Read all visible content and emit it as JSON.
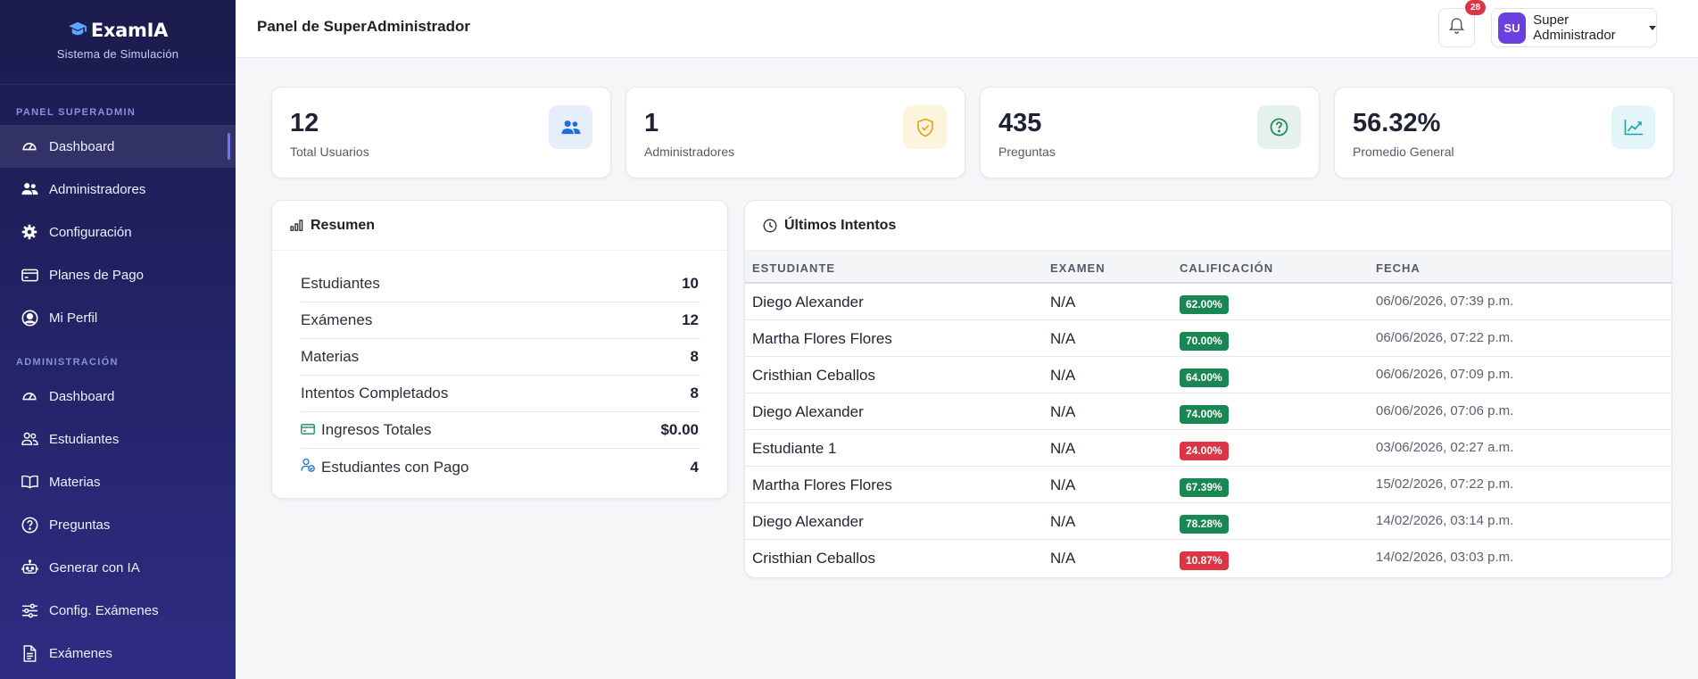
{
  "brand": {
    "name": "ExamIA",
    "subtitle": "Sistema de Simulación"
  },
  "sidebar": {
    "section1_title": "PANEL SUPERADMIN",
    "items1": [
      {
        "label": "Dashboard",
        "icon": "speedometer-icon",
        "active": true
      },
      {
        "label": "Administradores",
        "icon": "people-icon"
      },
      {
        "label": "Configuración",
        "icon": "gear-icon"
      },
      {
        "label": "Planes de Pago",
        "icon": "credit-card-icon"
      },
      {
        "label": "Mi Perfil",
        "icon": "user-circle-icon"
      }
    ],
    "section2_title": "ADMINISTRACIÓN",
    "items2": [
      {
        "label": "Dashboard",
        "icon": "speedometer-icon"
      },
      {
        "label": "Estudiantes",
        "icon": "people-icon"
      },
      {
        "label": "Materias",
        "icon": "book-icon"
      },
      {
        "label": "Preguntas",
        "icon": "question-circle-icon"
      },
      {
        "label": "Generar con IA",
        "icon": "robot-icon"
      },
      {
        "label": "Config. Exámenes",
        "icon": "sliders-icon"
      },
      {
        "label": "Exámenes",
        "icon": "file-icon"
      }
    ]
  },
  "header": {
    "title": "Panel de SuperAdministrador",
    "notifications_count": "28",
    "user_initials": "SU",
    "user_name": "Super Administrador"
  },
  "stats": [
    {
      "value": "12",
      "label": "Total Usuarios",
      "icon": "people-icon",
      "color": "#1d6fd8",
      "bg": "#e6eefc"
    },
    {
      "value": "1",
      "label": "Administradores",
      "icon": "shield-check-icon",
      "color": "#e3a21a",
      "bg": "#fdf4dc"
    },
    {
      "value": "435",
      "label": "Preguntas",
      "icon": "question-circle-icon",
      "color": "#198754",
      "bg": "#e5f1ec"
    },
    {
      "value": "56.32%",
      "label": "Promedio General",
      "icon": "graph-up-icon",
      "color": "#17a2b8",
      "bg": "#e3f5f8"
    }
  ],
  "resumen": {
    "title": "Resumen",
    "rows": [
      {
        "label": "Estudiantes",
        "value": "10"
      },
      {
        "label": "Exámenes",
        "value": "12"
      },
      {
        "label": "Materias",
        "value": "8"
      },
      {
        "label": "Intentos Completados",
        "value": "8"
      },
      {
        "label": "Ingresos Totales",
        "value": "$0.00",
        "icon": "cash-icon"
      },
      {
        "label": "Estudiantes con Pago",
        "value": "4",
        "icon": "person-check-icon"
      }
    ]
  },
  "intentos": {
    "title": "Últimos Intentos",
    "columns": [
      "ESTUDIANTE",
      "EXAMEN",
      "CALIFICACIÓN",
      "FECHA"
    ],
    "rows": [
      {
        "student": "Diego Alexander",
        "exam": "N/A",
        "score": "62.00%",
        "status": "pass",
        "date": "06/06/2026, 07:39 p.m."
      },
      {
        "student": "Martha Flores Flores",
        "exam": "N/A",
        "score": "70.00%",
        "status": "pass",
        "date": "06/06/2026, 07:22 p.m."
      },
      {
        "student": "Cristhian Ceballos",
        "exam": "N/A",
        "score": "64.00%",
        "status": "pass",
        "date": "06/06/2026, 07:09 p.m."
      },
      {
        "student": "Diego Alexander",
        "exam": "N/A",
        "score": "74.00%",
        "status": "pass",
        "date": "06/06/2026, 07:06 p.m."
      },
      {
        "student": "Estudiante 1",
        "exam": "N/A",
        "score": "24.00%",
        "status": "fail",
        "date": "03/06/2026, 02:27 a.m."
      },
      {
        "student": "Martha Flores Flores",
        "exam": "N/A",
        "score": "67.39%",
        "status": "pass",
        "date": "15/02/2026, 07:22 p.m."
      },
      {
        "student": "Diego Alexander",
        "exam": "N/A",
        "score": "78.28%",
        "status": "pass",
        "date": "14/02/2026, 03:14 p.m."
      },
      {
        "student": "Cristhian Ceballos",
        "exam": "N/A",
        "score": "10.87%",
        "status": "fail",
        "date": "14/02/2026, 03:03 p.m."
      }
    ]
  },
  "colors": {
    "pass": "#198754",
    "fail": "#dc3545",
    "sidebar": "#1b1b4d",
    "accent": "#6d74ff"
  }
}
